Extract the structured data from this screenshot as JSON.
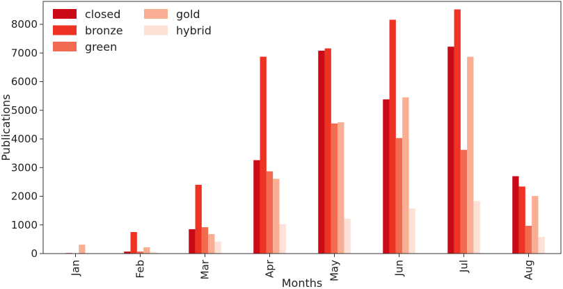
{
  "chart_data": {
    "type": "bar",
    "categories": [
      "Jan",
      "Feb",
      "Mar",
      "Apr",
      "May",
      "Jun",
      "Jul",
      "Aug"
    ],
    "series": [
      {
        "name": "closed",
        "color": "#cb0a18",
        "values": [
          0,
          70,
          850,
          3260,
          7080,
          5380,
          7220,
          2700
        ]
      },
      {
        "name": "bronze",
        "color": "#ee3324",
        "values": [
          20,
          750,
          2400,
          6870,
          7160,
          8160,
          8520,
          2340
        ]
      },
      {
        "name": "green",
        "color": "#f26a4f",
        "values": [
          0,
          70,
          920,
          2870,
          4540,
          4030,
          3620,
          970
        ]
      },
      {
        "name": "gold",
        "color": "#f9ae94",
        "values": [
          310,
          220,
          680,
          2610,
          4580,
          5450,
          6870,
          2010
        ]
      },
      {
        "name": "hybrid",
        "color": "#fde0d6",
        "values": [
          0,
          60,
          420,
          1030,
          1220,
          1570,
          1830,
          580
        ]
      }
    ],
    "title": "",
    "xlabel": "Months",
    "ylabel": "Publications",
    "ylim": [
      0,
      8800
    ],
    "yticks": [
      0,
      1000,
      2000,
      3000,
      4000,
      5000,
      6000,
      7000,
      8000
    ],
    "grid": false,
    "legend": {
      "placement": "top-left",
      "columns": 2
    }
  }
}
